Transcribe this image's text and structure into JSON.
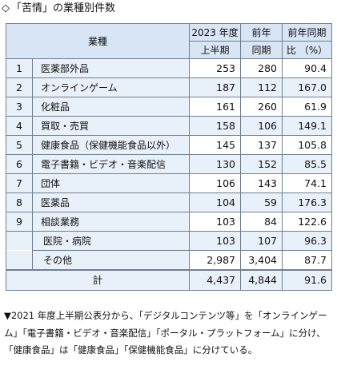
{
  "title": {
    "diamond": "◇",
    "text": "「苦情」の業種別件数"
  },
  "table": {
    "headers": {
      "category": "業種",
      "col1_line1": "2023 年度",
      "col1_line2": "上半期",
      "col2_line1": "前年",
      "col2_line2": "同期",
      "col3_line1": "前年同期",
      "col3_line2": "比 （%）"
    },
    "rows": [
      {
        "idx": "1",
        "category": "医薬部外品",
        "h1": "253",
        "prev": "280",
        "ratio": "90.4"
      },
      {
        "idx": "2",
        "category": "オンラインゲーム",
        "h1": "187",
        "prev": "112",
        "ratio": "167.0"
      },
      {
        "idx": "3",
        "category": "化粧品",
        "h1": "161",
        "prev": "260",
        "ratio": "61.9"
      },
      {
        "idx": "4",
        "category": "買取・売買",
        "h1": "158",
        "prev": "106",
        "ratio": "149.1"
      },
      {
        "idx": "5",
        "category": "健康食品（保健機能食品以外）",
        "h1": "145",
        "prev": "137",
        "ratio": "105.8"
      },
      {
        "idx": "6",
        "category": "電子書籍・ビデオ・音楽配信",
        "h1": "130",
        "prev": "152",
        "ratio": "85.5"
      },
      {
        "idx": "7",
        "category": "団体",
        "h1": "106",
        "prev": "143",
        "ratio": "74.1"
      },
      {
        "idx": "8",
        "category": "医薬品",
        "h1": "104",
        "prev": "59",
        "ratio": "176.3"
      },
      {
        "idx": "9",
        "category": "相談業務",
        "h1": "103",
        "prev": "84",
        "ratio": "122.6"
      },
      {
        "idx": "",
        "category": "医院・病院",
        "h1": "103",
        "prev": "107",
        "ratio": "96.3"
      },
      {
        "idx": "",
        "category": "その他",
        "h1": "2,987",
        "prev": "3,404",
        "ratio": "87.7"
      }
    ],
    "total": {
      "label": "計",
      "h1": "4,437",
      "prev": "4,844",
      "ratio": "91.6"
    }
  },
  "note": "▼2021 年度上半期公表分から、「デジタルコンテンツ等」を「オンラインゲーム」「電子書籍・ビデオ・音楽配信」「ポータル・プラットフォーム」に分け、「健康食品」は「健康食品」「保健機能食品」に分けている。",
  "colors": {
    "header_bg": "#d8e5f4",
    "alt_row_bg": "#e8f0f9",
    "border": "#6f7f8f"
  }
}
